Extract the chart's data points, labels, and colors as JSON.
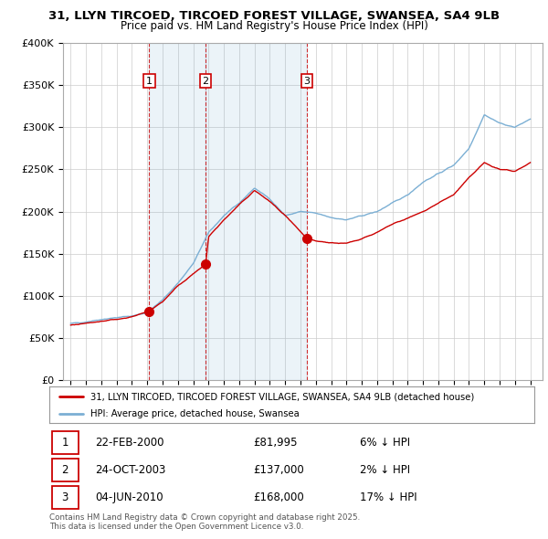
{
  "title1": "31, LLYN TIRCOED, TIRCOED FOREST VILLAGE, SWANSEA, SA4 9LB",
  "title2": "Price paid vs. HM Land Registry's House Price Index (HPI)",
  "ylim": [
    0,
    400000
  ],
  "yticks": [
    0,
    50000,
    100000,
    150000,
    200000,
    250000,
    300000,
    350000,
    400000
  ],
  "ytick_labels": [
    "£0",
    "£50K",
    "£100K",
    "£150K",
    "£200K",
    "£250K",
    "£300K",
    "£350K",
    "£400K"
  ],
  "xlim_start": 1994.5,
  "xlim_end": 2025.8,
  "transactions": [
    {
      "label": "1",
      "date": "22-FEB-2000",
      "price": 81995,
      "hpi_diff": "6% ↓ HPI",
      "x": 2000.13
    },
    {
      "label": "2",
      "date": "24-OCT-2003",
      "price": 137000,
      "hpi_diff": "2% ↓ HPI",
      "x": 2003.81
    },
    {
      "label": "3",
      "date": "04-JUN-2010",
      "price": 168000,
      "hpi_diff": "17% ↓ HPI",
      "x": 2010.42
    }
  ],
  "legend_red": "31, LLYN TIRCOED, TIRCOED FOREST VILLAGE, SWANSEA, SA4 9LB (detached house)",
  "legend_blue": "HPI: Average price, detached house, Swansea",
  "footnote": "Contains HM Land Registry data © Crown copyright and database right 2025.\nThis data is licensed under the Open Government Licence v3.0.",
  "red_color": "#cc0000",
  "blue_color": "#7bafd4",
  "vline_color": "#cc0000",
  "shade_color": "#ddeeff",
  "grid_color": "#cccccc",
  "hpi_anchors_x": [
    1995,
    1996,
    1997,
    1998,
    1999,
    2000,
    2001,
    2002,
    2003,
    2004,
    2005,
    2006,
    2007,
    2008,
    2009,
    2010,
    2011,
    2012,
    2013,
    2014,
    2015,
    2016,
    2017,
    2018,
    2019,
    2020,
    2021,
    2022,
    2023,
    2024,
    2025
  ],
  "hpi_anchors_y": [
    67000,
    69000,
    72000,
    74000,
    76000,
    80000,
    95000,
    115000,
    138000,
    175000,
    195000,
    210000,
    228000,
    215000,
    195000,
    200000,
    198000,
    193000,
    190000,
    195000,
    200000,
    210000,
    220000,
    235000,
    245000,
    255000,
    275000,
    315000,
    305000,
    300000,
    310000
  ],
  "red_anchors_x": [
    1995,
    1996,
    1997,
    1998,
    1999,
    2000.13,
    2001,
    2002,
    2003.81,
    2004,
    2005,
    2006,
    2007,
    2008,
    2009,
    2010.42,
    2011,
    2012,
    2013,
    2014,
    2015,
    2016,
    2017,
    2018,
    2019,
    2020,
    2021,
    2022,
    2023,
    2024,
    2025
  ],
  "red_anchors_y": [
    65000,
    67000,
    70000,
    72000,
    75000,
    81995,
    93000,
    112000,
    137000,
    170000,
    190000,
    208000,
    225000,
    212000,
    195000,
    168000,
    165000,
    163000,
    162000,
    168000,
    175000,
    185000,
    192000,
    200000,
    210000,
    220000,
    240000,
    258000,
    250000,
    248000,
    258000
  ]
}
